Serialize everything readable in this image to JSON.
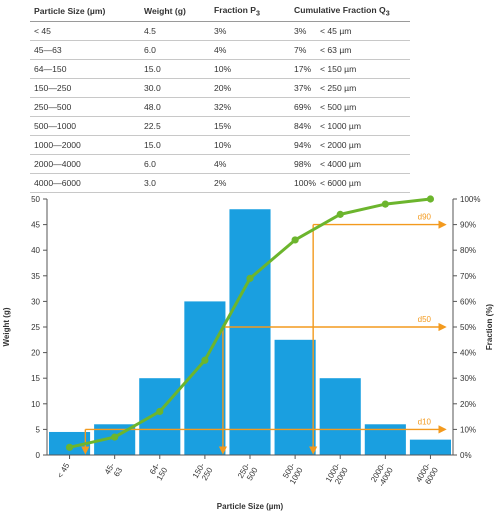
{
  "table": {
    "headers": {
      "size": "Particle Size (µm)",
      "weight": "Weight (g)",
      "fraction": "Fraction P",
      "fraction_sub": "3",
      "cumulative": "Cumulative Fraction Q",
      "cumulative_sub": "3"
    },
    "rows": [
      {
        "size": "< 45",
        "weight": "4.5",
        "fraction": "3%",
        "cum": "3%",
        "cum_size": "< 45 µm"
      },
      {
        "size": "45—63",
        "weight": "6.0",
        "fraction": "4%",
        "cum": "7%",
        "cum_size": "< 63 µm"
      },
      {
        "size": "64—150",
        "weight": "15.0",
        "fraction": "10%",
        "cum": "17%",
        "cum_size": "< 150 µm"
      },
      {
        "size": "150—250",
        "weight": "30.0",
        "fraction": "20%",
        "cum": "37%",
        "cum_size": "< 250 µm"
      },
      {
        "size": "250—500",
        "weight": "48.0",
        "fraction": "32%",
        "cum": "69%",
        "cum_size": "< 500 µm"
      },
      {
        "size": "500—1000",
        "weight": "22.5",
        "fraction": "15%",
        "cum": "84%",
        "cum_size": "< 1000 µm"
      },
      {
        "size": "1000—2000",
        "weight": "15.0",
        "fraction": "10%",
        "cum": "94%",
        "cum_size": "< 2000 µm"
      },
      {
        "size": "2000—4000",
        "weight": "6.0",
        "fraction": "4%",
        "cum": "98%",
        "cum_size": "< 4000 µm"
      },
      {
        "size": "4000—6000",
        "weight": "3.0",
        "fraction": "2%",
        "cum": "100%",
        "cum_size": "< 6000 µm"
      }
    ]
  },
  "chart_data": {
    "type": "bar",
    "categories": [
      [
        "< 45"
      ],
      [
        "45-",
        "63"
      ],
      [
        "64-",
        "150"
      ],
      [
        "150-",
        "250"
      ],
      [
        "250-",
        "500"
      ],
      [
        "500-",
        "1000"
      ],
      [
        "1000-",
        "2000"
      ],
      [
        "2000-",
        "-4000"
      ],
      [
        "4000-",
        "6000"
      ]
    ],
    "xlabel": "Particle Size (µm)",
    "ylabel": "Weight (g)",
    "y2label": "Fraction (%)",
    "ylim": [
      0,
      50
    ],
    "y_ticks": [
      0,
      5,
      10,
      15,
      20,
      25,
      30,
      35,
      40,
      45,
      50
    ],
    "y2lim": [
      0,
      100
    ],
    "y2_ticks": [
      "0%",
      "10%",
      "20%",
      "30%",
      "40%",
      "50%",
      "60%",
      "70%",
      "80%",
      "90%",
      "100%"
    ],
    "series": [
      {
        "type": "bar",
        "axis": "left",
        "values": [
          4.5,
          6.0,
          15.0,
          30.0,
          48.0,
          22.5,
          15.0,
          6.0,
          3.0
        ]
      },
      {
        "type": "line",
        "axis": "right",
        "values": [
          3,
          7,
          17,
          37,
          69,
          84,
          94,
          98,
          100
        ]
      }
    ],
    "markers": [
      {
        "label": "d10",
        "percent": 10,
        "category_position": 0.85
      },
      {
        "label": "d50",
        "percent": 50,
        "category_position": 3.9
      },
      {
        "label": "d90",
        "percent": 90,
        "category_position": 5.9
      }
    ],
    "grid": false,
    "colors": {
      "bar": "#1a9fe0",
      "line": "#6cb52d",
      "marker": "#f39a1e",
      "axis": "#555555"
    }
  }
}
